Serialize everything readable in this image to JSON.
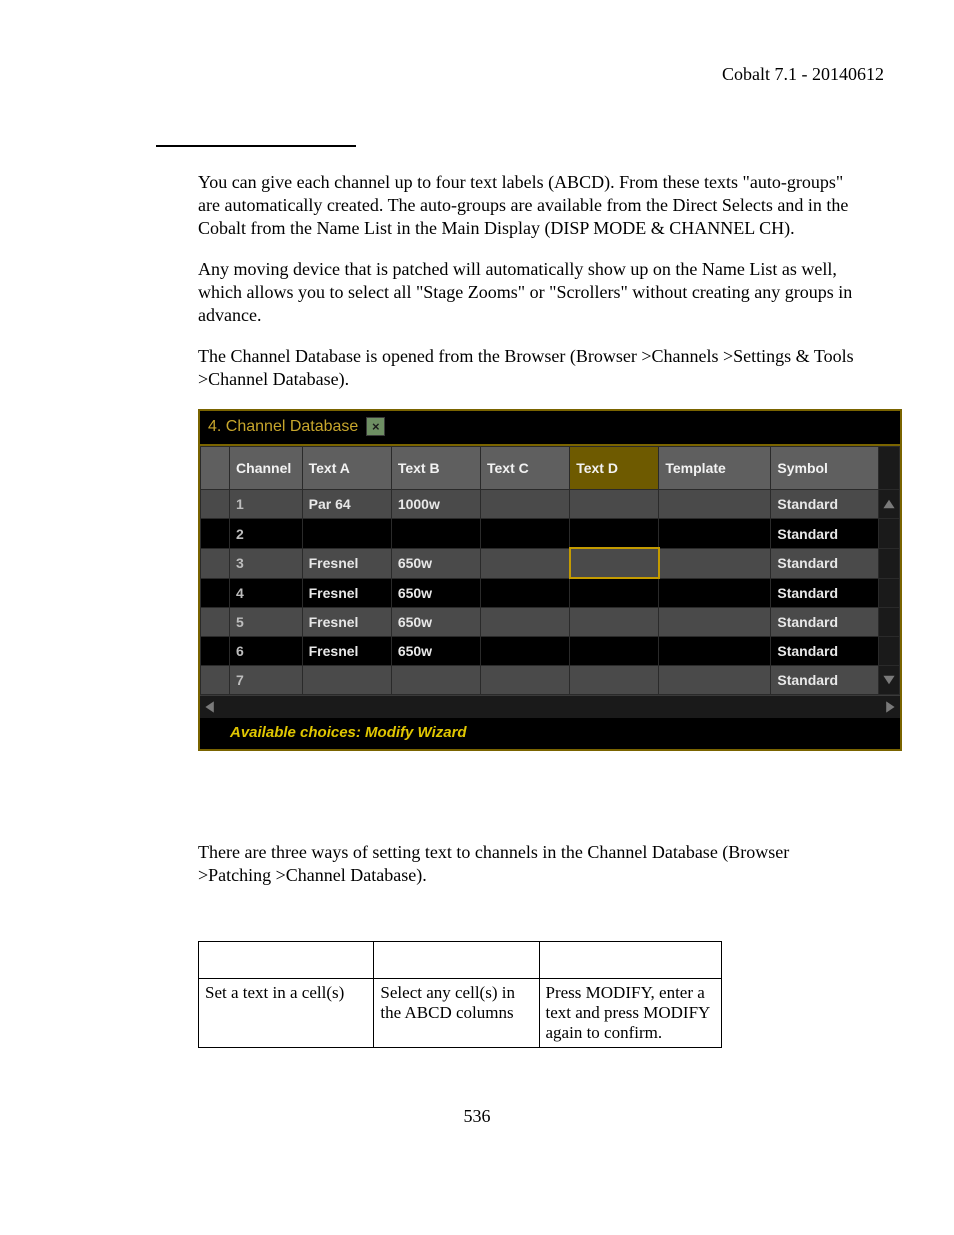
{
  "doc_header": "Cobalt 7.1 - 20140612",
  "page_number": "536",
  "paragraphs": {
    "p1": "You can give each channel up to four text labels (ABCD). From these texts \"auto-groups\" are automatically created. The auto-groups are available from the Direct Selects and in the Cobalt from the Name List in the Main Display (DISP MODE & CHANNEL CH).",
    "p2": "Any moving device that is patched will automatically show up on the Name List as well, which allows you to select all \"Stage Zooms\" or \"Scrollers\" without creating any groups in advance.",
    "p3": "The Channel Database is opened from the Browser (Browser >Channels >Settings & Tools >Channel Database).",
    "p4": "There are three ways of setting text to channels in the Channel Database (Browser >Patching >Channel Database)."
  },
  "channel_db": {
    "title": "4. Channel Database",
    "footer": "Available choices: Modify Wizard",
    "columns": {
      "gutter": "",
      "channel": "Channel",
      "text_a": "Text A",
      "text_b": "Text B",
      "text_c": "Text C",
      "text_d": "Text D",
      "template": "Template",
      "symbol": "Symbol"
    },
    "selected_column": "text_d",
    "cursor": {
      "row_index": 2,
      "column": "text_d"
    },
    "rows": [
      {
        "ch": "1",
        "ta": "Par 64",
        "tb": "1000w",
        "tc": "",
        "td": "",
        "tpl": "",
        "sym": "Standard"
      },
      {
        "ch": "2",
        "ta": "",
        "tb": "",
        "tc": "",
        "td": "",
        "tpl": "",
        "sym": "Standard"
      },
      {
        "ch": "3",
        "ta": "Fresnel",
        "tb": "650w",
        "tc": "",
        "td": "",
        "tpl": "",
        "sym": "Standard"
      },
      {
        "ch": "4",
        "ta": "Fresnel",
        "tb": "650w",
        "tc": "",
        "td": "",
        "tpl": "",
        "sym": "Standard"
      },
      {
        "ch": "5",
        "ta": "Fresnel",
        "tb": "650w",
        "tc": "",
        "td": "",
        "tpl": "",
        "sym": "Standard"
      },
      {
        "ch": "6",
        "ta": "Fresnel",
        "tb": "650w",
        "tc": "",
        "td": "",
        "tpl": "",
        "sym": "Standard"
      },
      {
        "ch": "7",
        "ta": "",
        "tb": "",
        "tc": "",
        "td": "",
        "tpl": "",
        "sym": "Standard"
      }
    ],
    "colors": {
      "border": "#7a6400",
      "header_bg": "#5f5f5f",
      "header_selected_bg": "#6e5a00",
      "row_odd_bg": "#4a4a4a",
      "row_even_bg": "#000000",
      "title_color": "#c7a62c",
      "footer_color": "#e0c600",
      "cursor_border": "#c49b00",
      "close_bg": "#6e8f63"
    }
  },
  "instruction_table": {
    "header": [
      "",
      "",
      ""
    ],
    "rows": [
      {
        "c1": "Set a text in a cell(s)",
        "c2": "Select any cell(s) in the ABCD columns",
        "c3": "Press MODIFY, enter a text and press MODIFY again to confirm."
      }
    ]
  }
}
